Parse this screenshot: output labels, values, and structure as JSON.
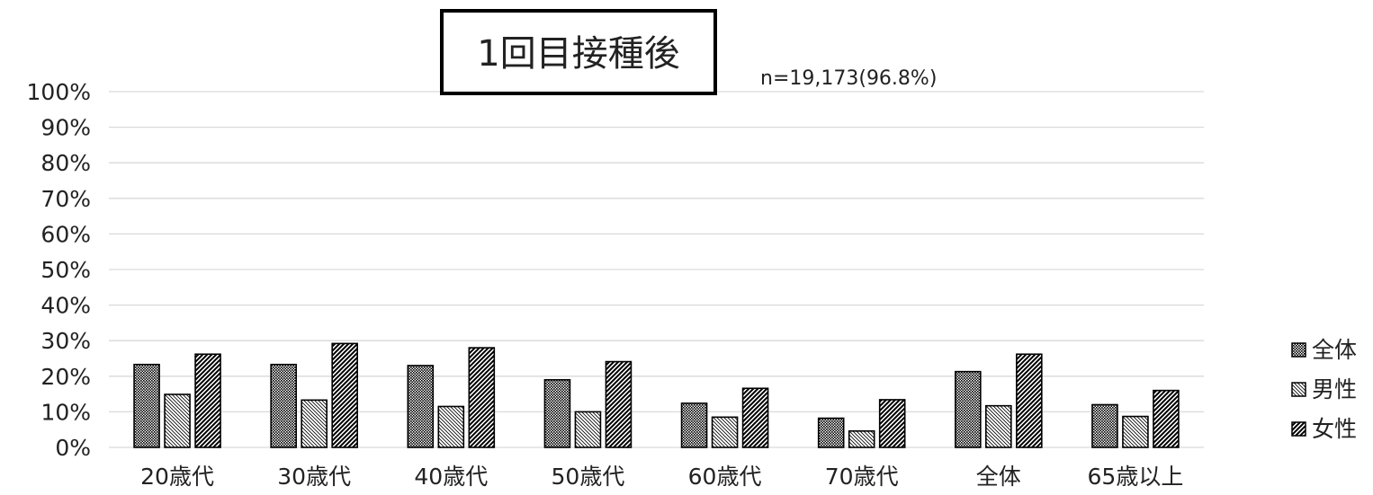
{
  "chart_data": {
    "type": "bar",
    "title": "1回目接種後",
    "subtitle": "n=19,173(96.8%)",
    "categories": [
      "20歳代",
      "30歳代",
      "40歳代",
      "50歳代",
      "60歳代",
      "70歳代",
      "全体",
      "65歳以上"
    ],
    "series": [
      {
        "name": "全体",
        "values": [
          23.3,
          23.3,
          23.0,
          19.0,
          12.4,
          8.2,
          21.3,
          12.0
        ],
        "pattern": "dots"
      },
      {
        "name": "男性",
        "values": [
          14.9,
          13.3,
          11.5,
          10.0,
          8.5,
          4.6,
          11.7,
          8.7
        ],
        "pattern": "back-hatch"
      },
      {
        "name": "女性",
        "values": [
          26.2,
          29.2,
          28.0,
          24.1,
          16.6,
          13.4,
          26.2,
          16.0
        ],
        "pattern": "hatch"
      }
    ],
    "ylim": [
      0,
      100
    ],
    "yticks": [
      "0%",
      "10%",
      "20%",
      "30%",
      "40%",
      "50%",
      "60%",
      "70%",
      "80%",
      "90%",
      "100%"
    ],
    "grid": true,
    "legend_position": "right",
    "colors": {
      "grid": "#d9d9d9",
      "bar_stroke": "#000000",
      "text": "#222222"
    }
  }
}
